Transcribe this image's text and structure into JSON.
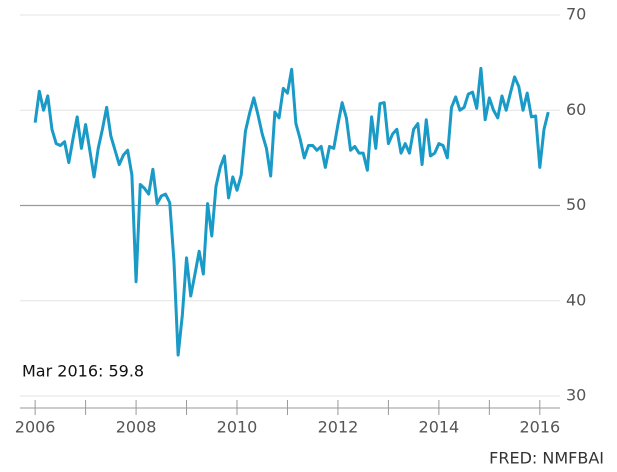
{
  "chart_data": {
    "type": "line",
    "annotation": "Mar 2016: 59.8",
    "source": "FRED: NMFBAI",
    "x": [
      2006,
      2006.083,
      2006.167,
      2006.25,
      2006.333,
      2006.417,
      2006.5,
      2006.583,
      2006.667,
      2006.75,
      2006.833,
      2006.917,
      2007,
      2007.083,
      2007.167,
      2007.25,
      2007.333,
      2007.417,
      2007.5,
      2007.583,
      2007.667,
      2007.75,
      2007.833,
      2007.917,
      2008,
      2008.083,
      2008.167,
      2008.25,
      2008.333,
      2008.417,
      2008.5,
      2008.583,
      2008.667,
      2008.75,
      2008.833,
      2008.917,
      2009,
      2009.083,
      2009.167,
      2009.25,
      2009.333,
      2009.417,
      2009.5,
      2009.583,
      2009.667,
      2009.75,
      2009.833,
      2009.917,
      2010,
      2010.083,
      2010.167,
      2010.25,
      2010.333,
      2010.417,
      2010.5,
      2010.583,
      2010.667,
      2010.75,
      2010.833,
      2010.917,
      2011,
      2011.083,
      2011.167,
      2011.25,
      2011.333,
      2011.417,
      2011.5,
      2011.583,
      2011.667,
      2011.75,
      2011.833,
      2011.917,
      2012,
      2012.083,
      2012.167,
      2012.25,
      2012.333,
      2012.417,
      2012.5,
      2012.583,
      2012.667,
      2012.75,
      2012.833,
      2012.917,
      2013,
      2013.083,
      2013.167,
      2013.25,
      2013.333,
      2013.417,
      2013.5,
      2013.583,
      2013.667,
      2013.75,
      2013.833,
      2013.917,
      2014,
      2014.083,
      2014.167,
      2014.25,
      2014.333,
      2014.417,
      2014.5,
      2014.583,
      2014.667,
      2014.75,
      2014.833,
      2014.917,
      2015,
      2015.083,
      2015.167,
      2015.25,
      2015.333,
      2015.417,
      2015.5,
      2015.583,
      2015.667,
      2015.75,
      2015.833,
      2015.917,
      2016,
      2016.083,
      2016.167
    ],
    "series": [
      {
        "color": "#1a9ac6",
        "values": [
          58.7,
          62,
          60,
          61.5,
          58,
          56.5,
          56.3,
          56.7,
          54.5,
          57,
          59.3,
          56,
          58.5,
          55.8,
          53,
          56,
          58,
          60.3,
          57.3,
          55.8,
          54.3,
          55.3,
          55.8,
          53.2,
          42,
          52.2,
          51.8,
          51.2,
          53.8,
          50.2,
          51,
          51.2,
          50.3,
          44.2,
          34.3,
          38.5,
          44.5,
          40.5,
          42.8,
          45.2,
          42.8,
          50.2,
          46.8,
          52,
          54,
          55.2,
          50.8,
          53,
          51.6,
          53.2,
          57.8,
          59.7,
          61.3,
          59.5,
          57.5,
          56,
          53.1,
          59.8,
          59.2,
          62.3,
          61.8,
          64.3,
          58.6,
          57,
          55,
          56.3,
          56.3,
          55.8,
          56.2,
          54,
          56.2,
          56,
          58.5,
          60.8,
          59.2,
          55.8,
          56.2,
          55.5,
          55.5,
          53.7,
          59.3,
          56,
          60.7,
          60.8,
          56.5,
          57.5,
          58,
          55.5,
          56.5,
          55.5,
          58,
          58.6,
          54.3,
          59,
          55.2,
          55.5,
          56.5,
          56.3,
          55,
          60.3,
          61.4,
          60,
          60.3,
          61.7,
          61.9,
          60.2,
          64.4,
          59,
          61.3,
          60,
          59.2,
          61.5,
          60,
          61.8,
          63.5,
          62.5,
          60,
          61.8,
          59.3,
          59.4,
          54,
          58,
          59.8
        ]
      }
    ],
    "xlim": [
      2005.7,
      2016.4
    ],
    "xticks": [
      2006,
      2008,
      2010,
      2012,
      2014,
      2016
    ],
    "xminor_ticks": [
      2007,
      2009,
      2011,
      2013,
      2015
    ],
    "ylim": [
      30,
      70
    ],
    "yticks": [
      30,
      40,
      50,
      60,
      70
    ],
    "reference_line": 50,
    "grid": true
  }
}
